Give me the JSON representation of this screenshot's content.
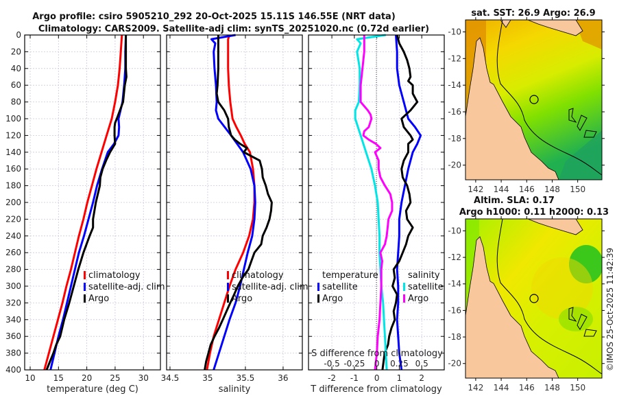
{
  "figure": {
    "title_line1": "Argo profile: csiro 5905210_292 20-Oct-2025 15.11S 146.55E (NRT data)",
    "title_line2": "Climatology: CARS2009. Satellite-adj clim: synTS_20251020.nc (0.72d earlier)",
    "copyright": "©IMOS 25-Oct-2025 11:42:39"
  },
  "colors": {
    "climatology": "#ff0000",
    "satellite_adj": "#0000ff",
    "argo": "#000000",
    "s_satellite": "#00e5e5",
    "s_argo": "#ff00ff",
    "land": "#f8c89c"
  },
  "chart_data": [
    {
      "type": "line",
      "id": "temperature-profile",
      "xlabel": "temperature (deg C)",
      "ylabel": "",
      "xlim": [
        9.03,
        33.0
      ],
      "ylim": [
        0,
        400
      ],
      "y_inverted": true,
      "xticks": [
        10,
        15,
        20,
        25,
        30
      ],
      "yticks": [
        0,
        20,
        40,
        60,
        80,
        100,
        120,
        140,
        160,
        180,
        200,
        220,
        240,
        260,
        280,
        300,
        320,
        340,
        360,
        380,
        400
      ],
      "grid": true,
      "legend": {
        "placement": "center-right",
        "entries": [
          "climatology",
          "satellite-adj. clim",
          "Argo"
        ]
      },
      "series": [
        {
          "name": "climatology",
          "color_key": "climatology",
          "depth": [
            0,
            20,
            40,
            60,
            80,
            100,
            120,
            140,
            160,
            180,
            200,
            220,
            240,
            260,
            280,
            300,
            320,
            340,
            360,
            380,
            400
          ],
          "values": [
            26.2,
            26.0,
            25.8,
            25.5,
            25.0,
            24.4,
            23.5,
            22.6,
            21.7,
            20.9,
            20.1,
            19.4,
            18.6,
            17.9,
            17.2,
            16.4,
            15.7,
            14.9,
            14.1,
            13.3,
            12.5
          ]
        },
        {
          "name": "satellite-adj. clim",
          "color_key": "satellite_adj",
          "depth": [
            0,
            20,
            40,
            60,
            80,
            100,
            110,
            120,
            130,
            140,
            160,
            180,
            200,
            220,
            240,
            260,
            280,
            300,
            320,
            340,
            360,
            380,
            400
          ],
          "values": [
            26.9,
            26.8,
            26.8,
            26.6,
            26.3,
            25.6,
            25.7,
            25.6,
            24.8,
            23.7,
            22.7,
            21.8,
            21.1,
            20.3,
            19.5,
            18.6,
            17.9,
            17.2,
            16.5,
            15.8,
            15.0,
            14.3,
            13.6
          ]
        },
        {
          "name": "Argo",
          "color_key": "argo",
          "depth": [
            0,
            20,
            40,
            50,
            60,
            80,
            100,
            105,
            110,
            120,
            130,
            140,
            150,
            160,
            170,
            180,
            200,
            220,
            230,
            240,
            260,
            280,
            300,
            320,
            340,
            360,
            370,
            380,
            400
          ],
          "values": [
            26.9,
            26.9,
            26.9,
            27.0,
            26.7,
            26.4,
            25.3,
            25.0,
            24.9,
            24.9,
            25.0,
            24.1,
            23.4,
            22.8,
            22.4,
            22.3,
            21.6,
            21.1,
            21.1,
            20.5,
            19.4,
            18.5,
            17.7,
            16.9,
            16.0,
            15.3,
            14.6,
            14.1,
            12.9
          ]
        }
      ]
    },
    {
      "type": "line",
      "id": "salinity-profile",
      "xlabel": "salinity",
      "ylabel": "",
      "xlim": [
        34.455,
        36.255
      ],
      "ylim": [
        0,
        400
      ],
      "y_inverted": true,
      "xticks": [
        34.5,
        35,
        35.5,
        36
      ],
      "grid": true,
      "legend": {
        "placement": "center-right",
        "entries": [
          "climatology",
          "satellite-adj. clim",
          "Argo"
        ]
      },
      "series": [
        {
          "name": "climatology",
          "color_key": "climatology",
          "depth": [
            0,
            5,
            20,
            40,
            60,
            80,
            100,
            110,
            120,
            130,
            140,
            160,
            180,
            200,
            220,
            240,
            260,
            280,
            300,
            320,
            340,
            360,
            380,
            400
          ],
          "values": [
            35.29,
            35.27,
            35.27,
            35.27,
            35.28,
            35.3,
            35.33,
            35.38,
            35.44,
            35.49,
            35.56,
            35.6,
            35.62,
            35.62,
            35.6,
            35.55,
            35.47,
            35.37,
            35.29,
            35.22,
            35.15,
            35.08,
            35.03,
            34.99
          ]
        },
        {
          "name": "satellite-adj. clim",
          "color_key": "satellite_adj",
          "depth": [
            0,
            5,
            10,
            20,
            40,
            60,
            80,
            90,
            100,
            120,
            140,
            160,
            180,
            200,
            220,
            240,
            260,
            280,
            300,
            320,
            340,
            360,
            380,
            400
          ],
          "values": [
            35.37,
            35.05,
            35.1,
            35.08,
            35.09,
            35.11,
            35.12,
            35.11,
            35.14,
            35.31,
            35.47,
            35.57,
            35.62,
            35.63,
            35.62,
            35.59,
            35.53,
            35.48,
            35.43,
            35.37,
            35.29,
            35.22,
            35.15,
            35.08
          ]
        },
        {
          "name": "Argo",
          "color_key": "argo",
          "depth": [
            0,
            5,
            20,
            40,
            60,
            70,
            80,
            90,
            100,
            110,
            120,
            125,
            130,
            135,
            140,
            150,
            160,
            170,
            180,
            190,
            200,
            210,
            220,
            230,
            240,
            250,
            260,
            270,
            280,
            290,
            300,
            310,
            320,
            330,
            340,
            350,
            360,
            370,
            380,
            390,
            400
          ],
          "values": [
            35.14,
            35.14,
            35.14,
            35.14,
            35.13,
            35.12,
            35.14,
            35.22,
            35.27,
            35.28,
            35.31,
            35.36,
            35.43,
            35.52,
            35.48,
            35.69,
            35.72,
            35.73,
            35.77,
            35.8,
            35.85,
            35.84,
            35.82,
            35.78,
            35.73,
            35.71,
            35.62,
            35.58,
            35.54,
            35.46,
            35.4,
            35.35,
            35.3,
            35.25,
            35.2,
            35.15,
            35.09,
            35.04,
            35.01,
            34.98,
            34.96
          ]
        }
      ]
    },
    {
      "type": "line",
      "id": "difference-profile",
      "xlabel": "T difference from climatology",
      "x2label": "S difference from climatology",
      "xlim": [
        -3.04,
        3.0
      ],
      "x2lim": [
        -0.76,
        0.75
      ],
      "ylim": [
        0,
        400
      ],
      "y_inverted": true,
      "xticks": [
        -2,
        -1,
        0,
        1,
        2
      ],
      "x2ticks": [
        -0.5,
        -0.25,
        0,
        0.25,
        0.5
      ],
      "grid": true,
      "zero_line": "dotted",
      "legend": {
        "placement": "lower-center",
        "groups": [
          {
            "title": "temperature",
            "entries": [
              "satellite",
              "Argo"
            ]
          },
          {
            "title": "salinity",
            "entries": [
              "satellite",
              "Argo"
            ]
          }
        ]
      },
      "series": [
        {
          "name": "temperature satellite",
          "group": "temperature",
          "color_key": "satellite_adj",
          "axis": "T",
          "depth": [
            0,
            20,
            40,
            60,
            80,
            100,
            110,
            120,
            130,
            140,
            160,
            180,
            200,
            220,
            240,
            260,
            280,
            300,
            320,
            340,
            360,
            380,
            400
          ],
          "values": [
            0.85,
            0.9,
            0.9,
            1.0,
            1.2,
            1.4,
            1.7,
            1.95,
            1.8,
            1.6,
            1.4,
            1.25,
            1.1,
            1.0,
            1.0,
            0.95,
            0.9,
            0.95,
            0.95,
            0.9,
            0.95,
            1.0,
            1.1
          ]
        },
        {
          "name": "temperature Argo",
          "group": "temperature",
          "color_key": "argo",
          "axis": "T",
          "depth": [
            0,
            10,
            20,
            30,
            40,
            50,
            55,
            60,
            70,
            80,
            90,
            100,
            110,
            120,
            125,
            130,
            140,
            150,
            160,
            170,
            180,
            190,
            200,
            210,
            220,
            230,
            240,
            250,
            260,
            270,
            280,
            290,
            300,
            310,
            320,
            330,
            340,
            350,
            360,
            370,
            380,
            390,
            400
          ],
          "values": [
            0.9,
            1.0,
            1.2,
            1.35,
            1.45,
            1.5,
            1.4,
            1.6,
            1.6,
            1.8,
            1.5,
            1.1,
            1.2,
            1.5,
            1.6,
            1.4,
            1.4,
            1.2,
            1.1,
            1.15,
            1.35,
            1.45,
            1.5,
            1.3,
            1.35,
            1.6,
            1.4,
            1.3,
            1.15,
            1.0,
            0.75,
            0.8,
            0.7,
            0.9,
            0.85,
            0.75,
            0.8,
            0.65,
            0.55,
            0.5,
            0.35,
            0.3,
            0.25
          ]
        },
        {
          "name": "salinity satellite",
          "group": "salinity",
          "color_key": "s_satellite",
          "axis": "S",
          "depth": [
            0,
            5,
            10,
            20,
            40,
            60,
            80,
            90,
            100,
            120,
            140,
            160,
            180,
            200,
            220,
            240,
            260,
            280,
            300,
            320,
            340,
            360,
            380,
            400
          ],
          "values": [
            0.1,
            -0.22,
            -0.18,
            -0.22,
            -0.19,
            -0.19,
            -0.2,
            -0.24,
            -0.24,
            -0.18,
            -0.12,
            -0.06,
            -0.02,
            0.01,
            0.02,
            0.03,
            0.03,
            0.04,
            0.05,
            0.07,
            0.08,
            0.09,
            0.1,
            0.11
          ]
        },
        {
          "name": "salinity Argo",
          "group": "salinity",
          "color_key": "s_argo",
          "axis": "S",
          "depth": [
            0,
            20,
            40,
            60,
            80,
            90,
            95,
            100,
            110,
            115,
            120,
            125,
            130,
            135,
            140,
            150,
            160,
            170,
            180,
            190,
            200,
            210,
            220,
            230,
            240,
            250,
            260,
            270,
            280,
            290,
            300,
            320,
            340,
            360,
            380,
            400
          ],
          "values": [
            -0.14,
            -0.14,
            -0.16,
            -0.18,
            -0.18,
            -0.1,
            -0.07,
            -0.06,
            -0.09,
            -0.14,
            -0.15,
            -0.09,
            -0.01,
            0.04,
            -0.02,
            0.02,
            0.02,
            0.04,
            0.09,
            0.15,
            0.17,
            0.17,
            0.13,
            0.12,
            0.11,
            0.09,
            0.04,
            0.06,
            0.05,
            0.05,
            0.05,
            0.04,
            0.03,
            0.01,
            0.0,
            -0.02
          ]
        }
      ]
    },
    {
      "type": "heatmap",
      "id": "sst-map",
      "title": "sat. SST: 26.9 Argo: 26.9",
      "xlim": [
        141.2,
        151.9
      ],
      "ylim": [
        -21.1,
        -9.1
      ],
      "xticks": [
        142,
        144,
        146,
        148,
        150
      ],
      "yticks": [
        -10,
        -12,
        -14,
        -16,
        -18,
        -20
      ],
      "marker": {
        "lon": 146.55,
        "lat": -15.11
      },
      "colormap": [
        "#d08000",
        "#f0a000",
        "#f8c800",
        "#e8e800",
        "#a8f000",
        "#40d000",
        "#20b040"
      ]
    },
    {
      "type": "heatmap",
      "id": "sla-map",
      "title_line1": "Altim. SLA: 0.17",
      "title_line2": "Argo h1000: 0.11 h2000: 0.13",
      "xlim": [
        141.2,
        151.9
      ],
      "ylim": [
        -21.1,
        -9.1
      ],
      "xticks": [
        142,
        144,
        146,
        148,
        150
      ],
      "yticks": [
        -10,
        -12,
        -14,
        -16,
        -18,
        -20
      ],
      "marker": {
        "lon": 146.55,
        "lat": -15.11
      },
      "colormap": [
        "#20c020",
        "#60e000",
        "#a0f000",
        "#d8f000",
        "#f0e800",
        "#f8d800"
      ]
    }
  ]
}
